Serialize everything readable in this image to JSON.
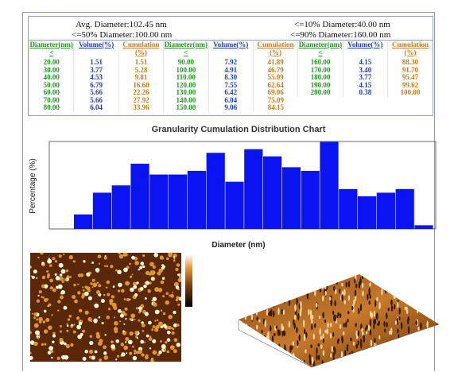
{
  "summary": {
    "avg": "Avg. Diameter:102.45 nm",
    "d10": "<=10% Diameter:40.00 nm",
    "d50": "<=50% Diameter:100.00 nm",
    "d90": "<=90% Diameter:160.00 nm"
  },
  "table": {
    "headers": [
      "Diameter(nm)<",
      "Volume(%)",
      "Cumulation(%)",
      "Diameter(nm)<",
      "Volume(%)",
      "Cumulation(%)",
      "Diameter(nm)<",
      "Volume(%)",
      "Cumulation(%)"
    ],
    "rows": [
      [
        "20.00",
        "1.51",
        "1.51",
        "90.00",
        "7.92",
        "41.89",
        "160.00",
        "4.15",
        "88.30"
      ],
      [
        "30.00",
        "3.77",
        "5.28",
        "100.00",
        "4.91",
        "46.79",
        "170.00",
        "3.40",
        "91.70"
      ],
      [
        "40.00",
        "4.53",
        "9.81",
        "110.00",
        "8.30",
        "55.09",
        "180.00",
        "3.77",
        "95.47"
      ],
      [
        "50.00",
        "6.79",
        "16.60",
        "120.00",
        "7.55",
        "62.64",
        "190.00",
        "4.15",
        "99.62"
      ],
      [
        "60.00",
        "5.66",
        "22.26",
        "130.00",
        "6.42",
        "69.06",
        "200.00",
        "0.38",
        "100.00"
      ],
      [
        "70.00",
        "5.66",
        "27.92",
        "140.00",
        "6.04",
        "75.09"
      ],
      [
        "80.00",
        "6.04",
        "33.96",
        "150.00",
        "9.06",
        "84.15"
      ]
    ]
  },
  "chart": {
    "type": "bar",
    "title": "Granularity Cumulation Distribution Chart",
    "x_label": "Diameter (nm)",
    "y_label": "Percentage (%)",
    "values": [
      1.51,
      3.77,
      4.53,
      6.79,
      5.66,
      5.66,
      6.04,
      7.92,
      4.91,
      8.3,
      7.55,
      6.42,
      6.04,
      9.06,
      4.15,
      3.4,
      3.77,
      4.15,
      0.38
    ],
    "color": "#0a14f0",
    "ylim": [
      0,
      9.1
    ]
  }
}
